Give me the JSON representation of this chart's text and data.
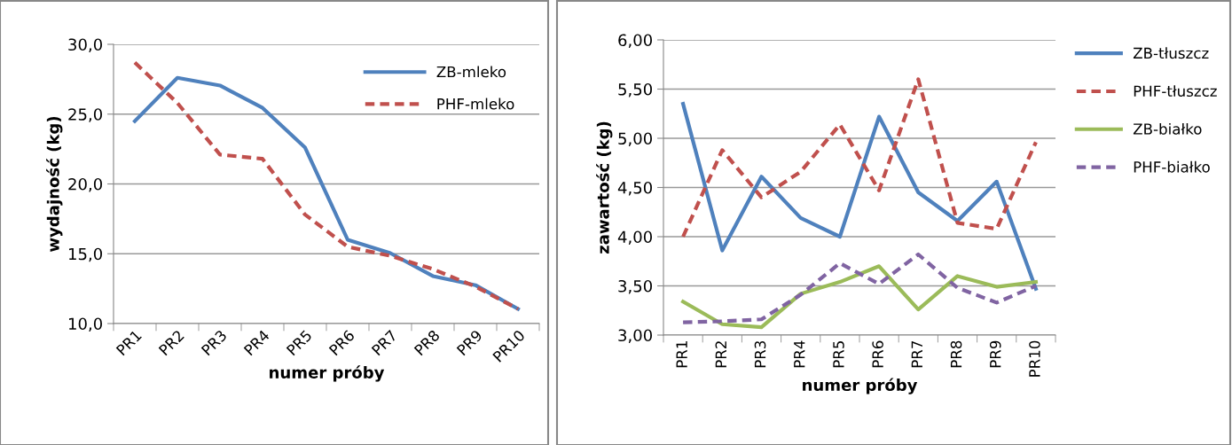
{
  "chart_data": [
    {
      "type": "line",
      "xlabel": "numer próby",
      "ylabel": "wydajność (kg)",
      "categories": [
        "PR1",
        "PR2",
        "PR3",
        "PR4",
        "PR5",
        "PR6",
        "PR7",
        "PR8",
        "PR9",
        "PR10"
      ],
      "series": [
        {
          "name": "ZB-mleko",
          "color": "#4f81bd",
          "line_style": "solid",
          "values": [
            24.5,
            27.6,
            27.05,
            25.45,
            22.6,
            16.0,
            15.05,
            13.4,
            12.75,
            11.05
          ]
        },
        {
          "name": "PHF-mleko",
          "color": "#c0504d",
          "line_style": "dashed",
          "values": [
            28.7,
            25.8,
            22.1,
            21.8,
            17.8,
            15.5,
            14.85,
            13.9,
            12.65,
            11.05
          ]
        }
      ],
      "ylim": [
        10,
        30
      ],
      "yticks": [
        {
          "value": 10,
          "label": "10,0"
        },
        {
          "value": 15,
          "label": "15,0"
        },
        {
          "value": 20,
          "label": "20,0"
        },
        {
          "value": 25,
          "label": "25,0"
        },
        {
          "value": 30,
          "label": "30,0"
        }
      ],
      "grid": "y",
      "legend": "top right",
      "marker": "none"
    },
    {
      "type": "line",
      "xlabel": "numer próby",
      "ylabel": "zawartość (kg)",
      "categories": [
        "PR1",
        "PR2",
        "PR3",
        "PR4",
        "PR5",
        "PR6",
        "PR7",
        "PR8",
        "PR9",
        "PR10"
      ],
      "series": [
        {
          "name": "ZB-tłuszcz",
          "color": "#4f81bd",
          "line_style": "solid",
          "values": [
            5.35,
            3.86,
            4.61,
            4.19,
            4.0,
            5.22,
            4.45,
            4.16,
            4.56,
            3.47
          ]
        },
        {
          "name": "PHF-tłuszcz",
          "color": "#c0504d",
          "line_style": "dashed",
          "values": [
            4.0,
            4.88,
            4.4,
            4.66,
            5.14,
            4.47,
            5.6,
            4.14,
            4.08,
            4.96
          ]
        },
        {
          "name": "ZB-białko",
          "color": "#9bbb59",
          "line_style": "solid",
          "values": [
            3.34,
            3.11,
            3.08,
            3.42,
            3.54,
            3.7,
            3.26,
            3.6,
            3.49,
            3.54
          ]
        },
        {
          "name": "PHF-białko",
          "color": "#8064a2",
          "line_style": "dashed",
          "values": [
            3.13,
            3.14,
            3.16,
            3.41,
            3.73,
            3.52,
            3.82,
            3.48,
            3.33,
            3.5
          ]
        }
      ],
      "ylim": [
        3,
        6
      ],
      "yticks": [
        {
          "value": 3,
          "label": "3,00"
        },
        {
          "value": 3.5,
          "label": "3,50"
        },
        {
          "value": 4,
          "label": "4,00"
        },
        {
          "value": 4.5,
          "label": "4,50"
        },
        {
          "value": 5,
          "label": "5,00"
        },
        {
          "value": 5.5,
          "label": "5,50"
        },
        {
          "value": 6,
          "label": "6,00"
        }
      ],
      "grid": "y",
      "legend": "right",
      "marker": "none"
    }
  ]
}
